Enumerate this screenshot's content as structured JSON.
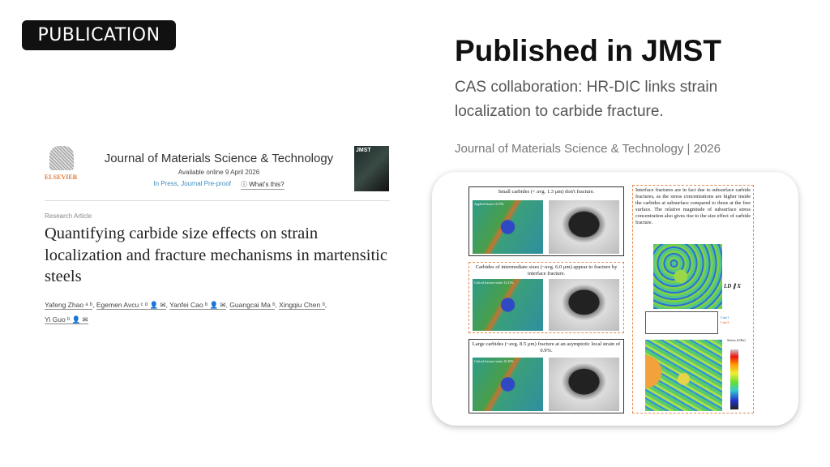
{
  "badge": "PUBLICATION",
  "headline": "Published in JMST",
  "subtitle": "CAS collaboration: HR-DIC links strain localization to carbide fracture.",
  "source": "Journal of Materials Science & Technology | 2026",
  "article": {
    "publisher": "ELSEVIER",
    "journal": "Journal of Materials Science & Technology",
    "available": "Available online 9 April 2026",
    "status": "In Press, Journal Pre-proof",
    "whats_this": "What's this?",
    "cover_label": "JMST",
    "type": "Research Article",
    "title": "Quantifying carbide size effects on strain localization and fracture mechanisms in martensitic steels",
    "authors": [
      "Yafeng Zhao ᵃ ᵇ",
      "Egemen Avcu ᶜ ᵈ 👤 ✉",
      "Yanfei Cao ᵇ 👤 ✉",
      "Guangcai Ma ᵇ",
      "Xingqiu Chen ᵇ",
      "Yi Guo ᵇ 👤 ✉"
    ]
  },
  "figure": {
    "panels": [
      {
        "caption": "Small carbides (< avg. 1.3 µm) don't fracture.",
        "label": "Applied Strain 14.19%"
      },
      {
        "caption": "Carbides of intermediate sizes (~avg. 6.0 µm) appear to fracture by interface fracture.",
        "label": "Critical fracture strain 12.41%"
      },
      {
        "caption": "Large carbides (~avg. 8.5 µm) fracture at an asymptotic local strain of 0.9%.",
        "label": "Critical fracture strain 10.40%"
      }
    ],
    "right_text": "Interface fractures are in fact due to subsurface carbide fractures, as the stress concentrations are higher inside the carbides at subsurface compared to those at the free surface. The relative magnitude of subsurface stress concentration also gives rise to the size effect of carbide fracture.",
    "axis_label": "LD ∥ X",
    "legend": [
      "Line1",
      "Line2"
    ],
    "colorbar_title": "Stress (GPa)"
  }
}
